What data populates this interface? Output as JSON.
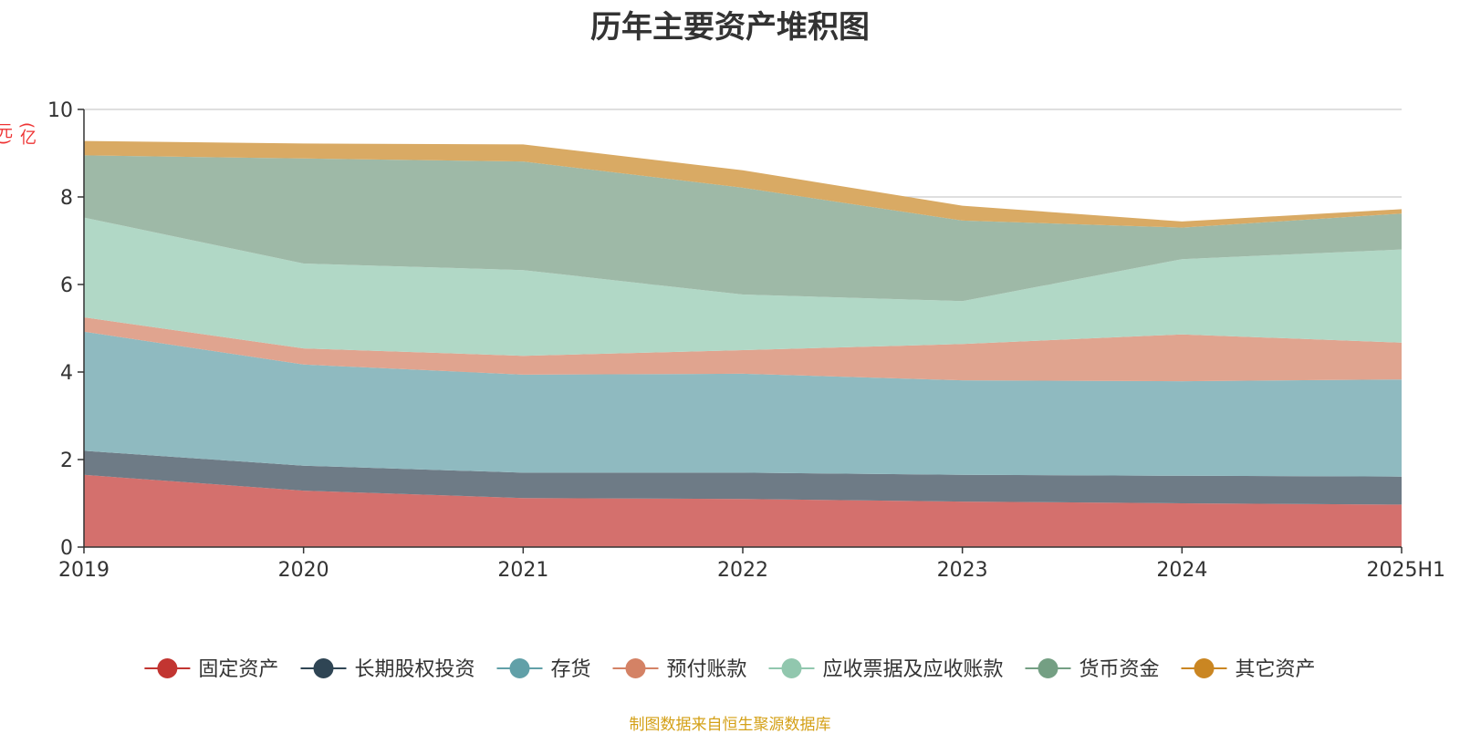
{
  "chart_data": {
    "type": "area",
    "stacked": true,
    "title": "历年主要资产堆积图",
    "ylabel": "(亿元)",
    "ylim": [
      0,
      10
    ],
    "yticks": [
      0,
      2,
      4,
      6,
      8,
      10
    ],
    "grid": true,
    "legend_position": "bottom",
    "categories": [
      "2019",
      "2020",
      "2021",
      "2022",
      "2023",
      "2024",
      "2025H1"
    ],
    "series": [
      {
        "name": "固定资产",
        "color": "#c23531",
        "fill": "#d4706d",
        "values": [
          1.65,
          1.29,
          1.12,
          1.1,
          1.04,
          1.0,
          0.97
        ]
      },
      {
        "name": "长期股权投资",
        "color": "#2f4554",
        "fill": "#6e7b86",
        "values": [
          0.55,
          0.57,
          0.58,
          0.6,
          0.61,
          0.63,
          0.64
        ]
      },
      {
        "name": "存货",
        "color": "#61a0a8",
        "fill": "#8fbac0",
        "values": [
          2.72,
          2.31,
          2.24,
          2.26,
          2.16,
          2.16,
          2.22
        ]
      },
      {
        "name": "预付账款",
        "color": "#d48265",
        "fill": "#e0a48f",
        "values": [
          0.33,
          0.37,
          0.43,
          0.54,
          0.83,
          1.07,
          0.84
        ]
      },
      {
        "name": "应收票据及应收账款",
        "color": "#91c7ae",
        "fill": "#b1d8c6",
        "values": [
          2.28,
          1.94,
          1.96,
          1.27,
          0.98,
          1.72,
          2.13
        ]
      },
      {
        "name": "货币资金",
        "color": "#749f83",
        "fill": "#9eb9a7",
        "values": [
          1.42,
          2.4,
          2.48,
          2.44,
          1.84,
          0.72,
          0.82
        ]
      },
      {
        "name": "其它资产",
        "color": "#ca8622",
        "fill": "#d9aa64",
        "values": [
          0.33,
          0.34,
          0.39,
          0.4,
          0.34,
          0.14,
          0.1
        ]
      }
    ]
  },
  "source_note": "制图数据来自恒生聚源数据库"
}
